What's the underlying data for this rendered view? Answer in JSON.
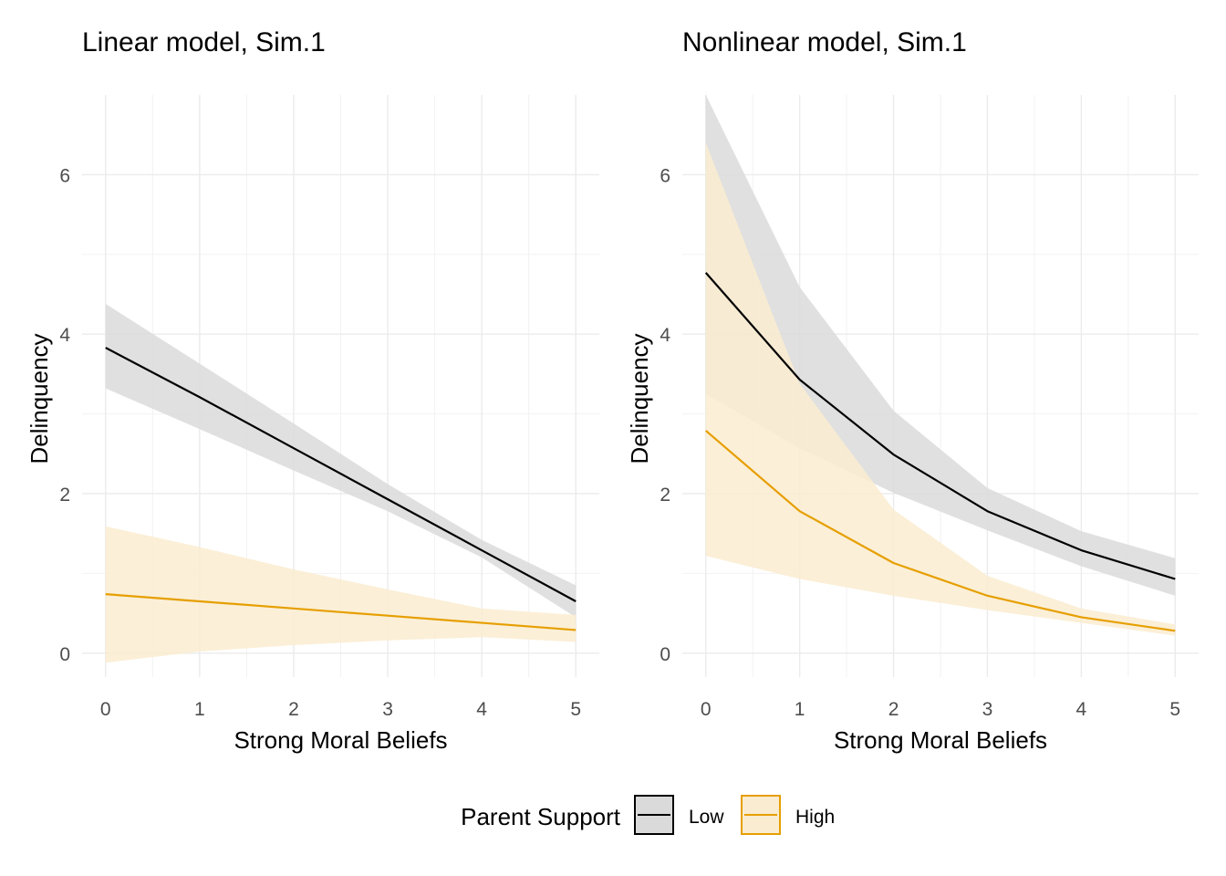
{
  "legend": {
    "title": "Parent Support",
    "position": "bottom",
    "entries": [
      {
        "label": "Low",
        "color": "#000000",
        "fill": "#dadada"
      },
      {
        "label": "High",
        "color": "#E69F00",
        "fill": "#faecd0"
      }
    ]
  },
  "chart_data": [
    {
      "type": "line",
      "title": "Linear model, Sim.1",
      "xlabel": "Strong Moral Beliefs",
      "ylabel": "Delinquency",
      "xlim": [
        -0.25,
        5.25
      ],
      "ylim": [
        -0.3,
        7.0
      ],
      "x_ticks": [
        0,
        1,
        2,
        3,
        4,
        5
      ],
      "y_ticks": [
        0,
        2,
        4,
        6
      ],
      "grid": true,
      "x": [
        0,
        1,
        2,
        3,
        4,
        5
      ],
      "series": [
        {
          "name": "Low",
          "color": "#000000",
          "band_color": "#dadada",
          "values": [
            3.83,
            3.21,
            2.57,
            1.93,
            1.29,
            0.65
          ],
          "lower": [
            3.32,
            2.81,
            2.29,
            1.78,
            1.2,
            0.45
          ],
          "upper": [
            4.38,
            3.63,
            2.88,
            2.12,
            1.42,
            0.85
          ]
        },
        {
          "name": "High",
          "color": "#E69F00",
          "band_color": "#faecd0",
          "values": [
            0.74,
            0.65,
            0.56,
            0.47,
            0.38,
            0.29
          ],
          "lower": [
            -0.12,
            0.02,
            0.1,
            0.16,
            0.2,
            0.14
          ],
          "upper": [
            1.59,
            1.33,
            1.05,
            0.8,
            0.56,
            0.48
          ]
        }
      ]
    },
    {
      "type": "line",
      "title": "Nonlinear model, Sim.1",
      "xlabel": "Strong Moral Beliefs",
      "ylabel": "Delinquency",
      "xlim": [
        -0.25,
        5.25
      ],
      "ylim": [
        -0.3,
        7.0
      ],
      "x_ticks": [
        0,
        1,
        2,
        3,
        4,
        5
      ],
      "y_ticks": [
        0,
        2,
        4,
        6
      ],
      "grid": true,
      "x": [
        0,
        1,
        2,
        3,
        4,
        5
      ],
      "series": [
        {
          "name": "Low",
          "color": "#000000",
          "band_color": "#dadada",
          "values": [
            4.77,
            3.43,
            2.49,
            1.78,
            1.29,
            0.93
          ],
          "lower": [
            3.25,
            2.57,
            2.01,
            1.54,
            1.09,
            0.72
          ],
          "upper": [
            7.0,
            4.59,
            3.04,
            2.07,
            1.53,
            1.19
          ]
        },
        {
          "name": "High",
          "color": "#E69F00",
          "band_color": "#faecd0",
          "values": [
            2.79,
            1.78,
            1.13,
            0.72,
            0.45,
            0.28
          ],
          "lower": [
            1.22,
            0.93,
            0.72,
            0.54,
            0.38,
            0.22
          ],
          "upper": [
            6.4,
            3.38,
            1.8,
            0.97,
            0.56,
            0.36
          ]
        }
      ]
    }
  ]
}
